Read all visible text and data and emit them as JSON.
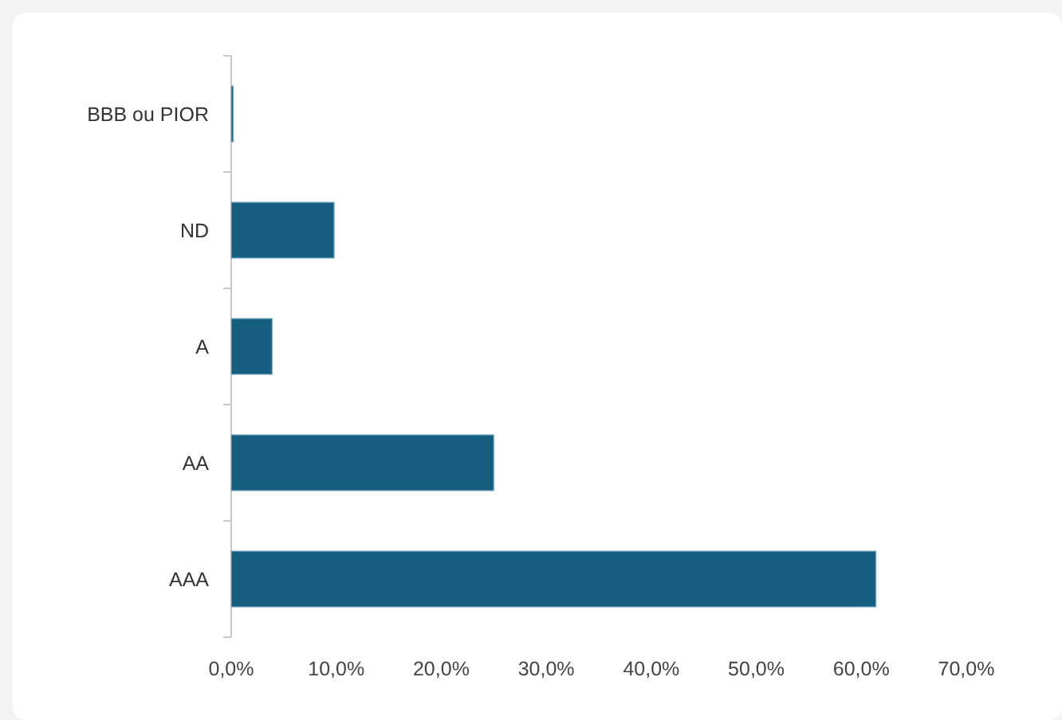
{
  "chart_data": {
    "type": "bar",
    "orientation": "horizontal",
    "categories": [
      "BBB ou PIOR",
      "ND",
      "A",
      "AA",
      "AAA"
    ],
    "values": [
      0.2,
      9.8,
      3.9,
      25,
      61.4
    ],
    "color": "#165e80",
    "xlim": [
      0,
      70
    ],
    "xticks": [
      {
        "value": 0,
        "label": "0,0%"
      },
      {
        "value": 10,
        "label": "10,0%"
      },
      {
        "value": 20,
        "label": "20,0%"
      },
      {
        "value": 30,
        "label": "30,0%"
      },
      {
        "value": 40,
        "label": "40,0%"
      },
      {
        "value": 50,
        "label": "50,0%"
      },
      {
        "value": 60,
        "label": "60,0%"
      },
      {
        "value": 70,
        "label": "70,0%"
      }
    ],
    "grid": false
  }
}
